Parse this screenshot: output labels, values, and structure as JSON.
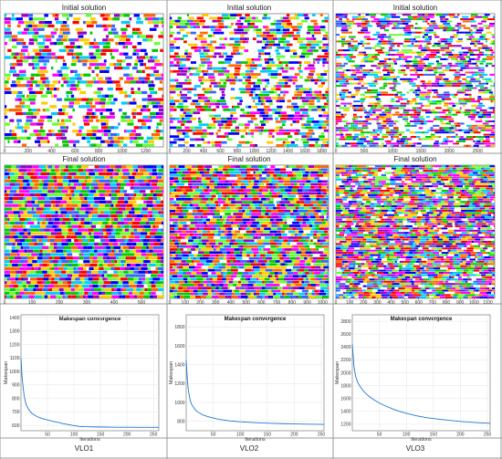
{
  "panels": {
    "initial_title": "Initial solution",
    "final_title": "Final solution"
  },
  "columns": [
    "VLO1",
    "VLO2",
    "VLO3"
  ],
  "colors": {
    "grid_line": "#999999",
    "series_line": "#1f77d4",
    "palette": [
      "#ff00ff",
      "#00cc00",
      "#0000ff",
      "#ffcc00",
      "#ff0000",
      "#00ccff",
      "#9900cc",
      "#66ff33",
      "#ff6600",
      "#3366ff"
    ]
  },
  "chart_data": [
    {
      "type": "gantt",
      "title": "Initial solution",
      "x_ticks": [
        0,
        200,
        400,
        600,
        800,
        1000,
        1200
      ],
      "xlim": [
        0,
        1350
      ],
      "rows": 38,
      "density": 0.55
    },
    {
      "type": "gantt",
      "title": "Initial solution",
      "x_ticks": [
        0,
        200,
        400,
        600,
        800,
        1000,
        1200,
        1400,
        1600,
        1800
      ],
      "xlim": [
        0,
        1880
      ],
      "rows": 45,
      "density": 0.6
    },
    {
      "type": "gantt",
      "title": "Initial solution",
      "x_ticks": [
        0,
        500,
        1000,
        1500,
        2000,
        2500
      ],
      "xlim": [
        0,
        2800
      ],
      "rows": 60,
      "density": 0.6
    },
    {
      "type": "gantt",
      "title": "Final solution",
      "x_ticks": [
        0,
        100,
        200,
        300,
        400,
        500
      ],
      "xlim": [
        0,
        580
      ],
      "rows": 38,
      "density": 0.97
    },
    {
      "type": "gantt",
      "title": "Final solution",
      "x_ticks": [
        0,
        100,
        200,
        300,
        400,
        500,
        600,
        700,
        800,
        900,
        1000
      ],
      "xlim": [
        0,
        1040
      ],
      "rows": 45,
      "density": 0.95
    },
    {
      "type": "gantt",
      "title": "Final solution",
      "x_ticks": [
        0,
        100,
        200,
        300,
        400,
        500,
        600,
        700,
        800,
        900,
        1000,
        1100
      ],
      "xlim": [
        0,
        1150
      ],
      "rows": 60,
      "density": 0.9
    },
    {
      "type": "line",
      "title": "Makespan convergence",
      "xlabel": "Iterations",
      "ylabel": "Makespan",
      "x_ticks": [
        50,
        100,
        150,
        200,
        250
      ],
      "y_ticks": [
        600,
        700,
        800,
        900,
        1000,
        1100,
        1200,
        1300,
        1400
      ],
      "xlim": [
        0,
        260
      ],
      "ylim": [
        560,
        1420
      ],
      "series": [
        {
          "x": [
            0,
            2,
            4,
            6,
            8,
            10,
            15,
            20,
            30,
            40,
            50,
            60,
            70,
            80,
            90,
            100,
            110,
            120,
            140,
            160,
            180,
            200,
            220,
            240,
            260
          ],
          "y": [
            1100,
            960,
            880,
            820,
            780,
            750,
            715,
            690,
            665,
            650,
            640,
            630,
            622,
            612,
            605,
            598,
            592,
            590,
            588,
            587,
            586,
            586,
            585,
            585,
            585
          ]
        }
      ]
    },
    {
      "type": "line",
      "title": "Makespan convergence",
      "xlabel": "Iterations",
      "ylabel": "Makespan",
      "x_ticks": [
        50,
        100,
        150,
        200,
        250
      ],
      "y_ticks": [
        800,
        1000,
        1200,
        1400,
        1600,
        1800
      ],
      "xlim": [
        0,
        255
      ],
      "ylim": [
        700,
        1930
      ],
      "series": [
        {
          "x": [
            0,
            2,
            4,
            6,
            8,
            10,
            15,
            20,
            30,
            40,
            50,
            60,
            80,
            100,
            120,
            140,
            160,
            180,
            200,
            220,
            240,
            255
          ],
          "y": [
            1450,
            1250,
            1130,
            1060,
            1010,
            980,
            935,
            905,
            870,
            850,
            835,
            822,
            805,
            795,
            788,
            782,
            778,
            775,
            772,
            770,
            768,
            767
          ]
        }
      ]
    },
    {
      "type": "line",
      "title": "Makespan convergence",
      "xlabel": "Iterations",
      "ylabel": "Makespan",
      "x_ticks": [
        50,
        100,
        150,
        200,
        250
      ],
      "y_ticks": [
        1200,
        1400,
        1600,
        1800,
        2000,
        2200,
        2400,
        2600,
        2800
      ],
      "xlim": [
        0,
        255
      ],
      "ylim": [
        1100,
        2900
      ],
      "series": [
        {
          "x": [
            0,
            3,
            6,
            10,
            15,
            20,
            30,
            40,
            50,
            60,
            80,
            100,
            120,
            140,
            160,
            180,
            200,
            220,
            240,
            255
          ],
          "y": [
            2450,
            2100,
            1950,
            1850,
            1780,
            1720,
            1640,
            1580,
            1530,
            1490,
            1420,
            1370,
            1330,
            1300,
            1280,
            1260,
            1245,
            1232,
            1222,
            1216
          ]
        }
      ]
    }
  ]
}
